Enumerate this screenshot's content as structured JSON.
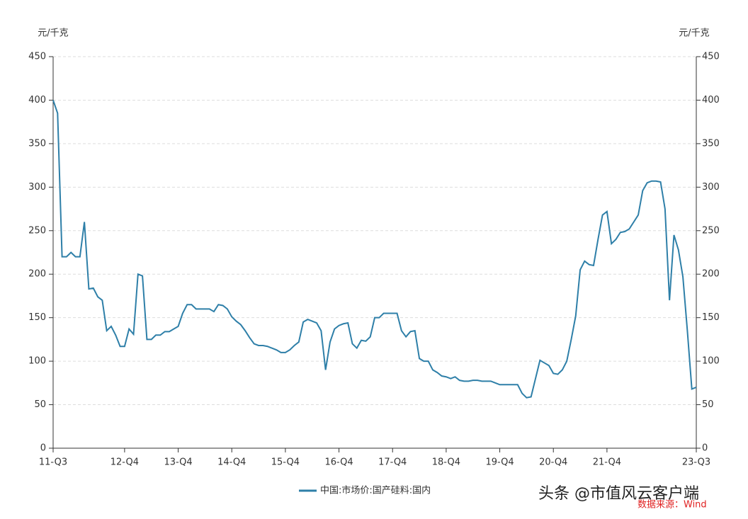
{
  "chart_data": {
    "type": "line",
    "y_label": "元/千克",
    "y2_label": "元/千克",
    "categories": [
      "11-Q3",
      null,
      null,
      null,
      null,
      null,
      null,
      null,
      null,
      null,
      null,
      null,
      null,
      null,
      null,
      null,
      "12-Q4",
      null,
      null,
      null,
      null,
      null,
      null,
      null,
      null,
      null,
      null,
      null,
      "13-Q4",
      null,
      null,
      null,
      null,
      null,
      null,
      null,
      null,
      null,
      null,
      null,
      "14-Q4",
      null,
      null,
      null,
      null,
      null,
      null,
      null,
      null,
      null,
      null,
      null,
      "15-Q4",
      null,
      null,
      null,
      null,
      null,
      null,
      null,
      null,
      null,
      null,
      null,
      "16-Q4",
      null,
      null,
      null,
      null,
      null,
      null,
      null,
      null,
      null,
      null,
      null,
      "17-Q4",
      null,
      null,
      null,
      null,
      null,
      null,
      null,
      null,
      null,
      null,
      null,
      "18-Q4",
      null,
      null,
      null,
      null,
      null,
      null,
      null,
      null,
      null,
      null,
      null,
      "19-Q4",
      null,
      null,
      null,
      null,
      null,
      null,
      null,
      null,
      null,
      null,
      null,
      "20-Q4",
      null,
      null,
      null,
      null,
      null,
      null,
      null,
      null,
      null,
      null,
      null,
      "21-Q4",
      null,
      null,
      null,
      null,
      null,
      null,
      null,
      null,
      null,
      null,
      null,
      null,
      null,
      null,
      null,
      null,
      null,
      null,
      null,
      "23-Q3"
    ],
    "series": [
      {
        "name": "中国:市场价:国产硅料:国内",
        "color": "#2e7fa8",
        "values": [
          400,
          385,
          220,
          220,
          225,
          220,
          220,
          260,
          183,
          184,
          174,
          170,
          135,
          140,
          130,
          117,
          117,
          137,
          131,
          200,
          198,
          125,
          125,
          130,
          130,
          134,
          134,
          137,
          140,
          155,
          165,
          165,
          160,
          160,
          160,
          160,
          157,
          165,
          164,
          160,
          151,
          146,
          142,
          135,
          127,
          120,
          118,
          118,
          117,
          115,
          113,
          110,
          110,
          113,
          118,
          122,
          145,
          148,
          146,
          144,
          135,
          90,
          122,
          137,
          141,
          143,
          144,
          120,
          115,
          124,
          123,
          128,
          150,
          150,
          155,
          155,
          155,
          155,
          135,
          128,
          134,
          135,
          103,
          100,
          100,
          90,
          87,
          83,
          82,
          80,
          82,
          78,
          77,
          77,
          78,
          78,
          77,
          77,
          77,
          75,
          73,
          73,
          73,
          73,
          73,
          63,
          58,
          59,
          80,
          101,
          98,
          95,
          86,
          85,
          90,
          100,
          125,
          152,
          205,
          215,
          211,
          210,
          240,
          268,
          272,
          235,
          240,
          248,
          249,
          252,
          260,
          268,
          296,
          305,
          307,
          307,
          306,
          275,
          170,
          245,
          228,
          197,
          135,
          68,
          70
        ]
      }
    ],
    "ylim": [
      0,
      450
    ],
    "yticks": [
      0,
      50,
      100,
      150,
      200,
      250,
      300,
      350,
      400,
      450
    ],
    "y2lim": [
      0,
      450
    ],
    "y2ticks": [
      0,
      50,
      100,
      150,
      200,
      250,
      300,
      350,
      400,
      450
    ],
    "grid": true,
    "watermark": "头条 @市值风云客户端",
    "source": "数据来源：Wind"
  }
}
